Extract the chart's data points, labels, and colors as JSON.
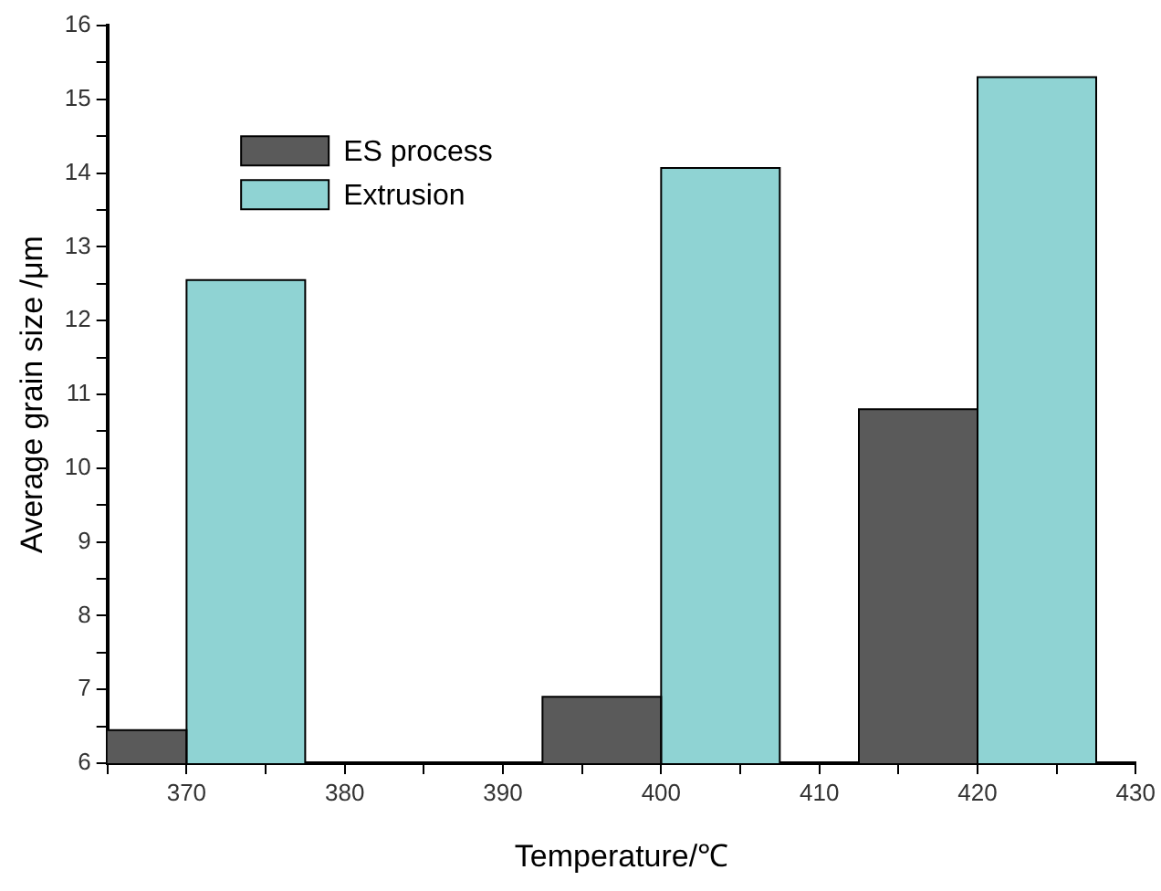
{
  "chart_data": {
    "type": "bar",
    "xlabel": "Temperature/℃",
    "ylabel": "Average grain size /μm",
    "x": [
      370,
      400,
      420
    ],
    "series": [
      {
        "name": "ES process",
        "color": "#5a5a5a",
        "values": [
          6.45,
          6.9,
          10.8
        ]
      },
      {
        "name": "Extrusion",
        "color": "#8fd3d3",
        "values": [
          12.55,
          14.07,
          15.3
        ]
      }
    ],
    "xlim": [
      365,
      430
    ],
    "xticks": [
      {
        "value": 365,
        "label": null
      },
      370,
      {
        "value": 375,
        "label": null
      },
      380,
      {
        "value": 385,
        "label": null
      },
      390,
      {
        "value": 395,
        "label": null
      },
      400,
      {
        "value": 405,
        "label": null
      },
      410,
      {
        "value": 415,
        "label": null
      },
      420,
      {
        "value": 425,
        "label": null
      },
      430
    ],
    "ylim": [
      6,
      16
    ],
    "yticks": [
      6,
      {
        "value": 6.5,
        "label": null
      },
      7,
      {
        "value": 7.5,
        "label": null
      },
      8,
      {
        "value": 8.5,
        "label": null
      },
      9,
      {
        "value": 9.5,
        "label": null
      },
      10,
      {
        "value": 10.5,
        "label": null
      },
      11,
      {
        "value": 11.5,
        "label": null
      },
      12,
      {
        "value": 12.5,
        "label": null
      },
      13,
      {
        "value": 13.5,
        "label": null
      },
      14,
      {
        "value": 14.5,
        "label": null
      },
      15,
      {
        "value": 15.5,
        "label": null
      },
      16
    ],
    "grid": false,
    "legend": "top left"
  }
}
